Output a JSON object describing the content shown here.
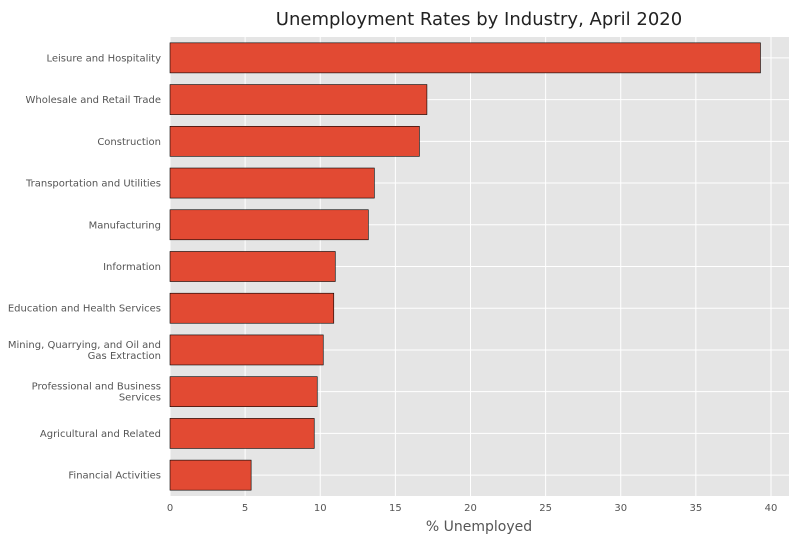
{
  "chart_data": {
    "type": "bar",
    "orientation": "horizontal",
    "title": "Unemployment Rates by Industry, April 2020",
    "xlabel": "% Unemployed",
    "ylabel": "",
    "xlim": [
      0,
      41.2
    ],
    "xticks": [
      0,
      5,
      10,
      15,
      20,
      25,
      30,
      35,
      40
    ],
    "grid": true,
    "categories": [
      [
        "Leisure and Hospitality"
      ],
      [
        "Wholesale and Retail Trade"
      ],
      [
        "Construction"
      ],
      [
        "Transportation and Utilities"
      ],
      [
        "Manufacturing"
      ],
      [
        "Information"
      ],
      [
        "Education and Health Services"
      ],
      [
        "Mining, Quarrying, and Oil and",
        "Gas Extraction"
      ],
      [
        "Professional and Business",
        "Services"
      ],
      [
        "Agricultural and Related"
      ],
      [
        "Financial Activities"
      ]
    ],
    "values": [
      39.3,
      17.1,
      16.6,
      13.6,
      13.2,
      11.0,
      10.9,
      10.2,
      9.8,
      9.6,
      5.4
    ],
    "colors": {
      "bar": "#e24a33",
      "bar_edge": "#000000",
      "plot_background": "#e5e5e5",
      "grid": "#ffffff",
      "text": "#555555",
      "title": "#222222"
    }
  }
}
